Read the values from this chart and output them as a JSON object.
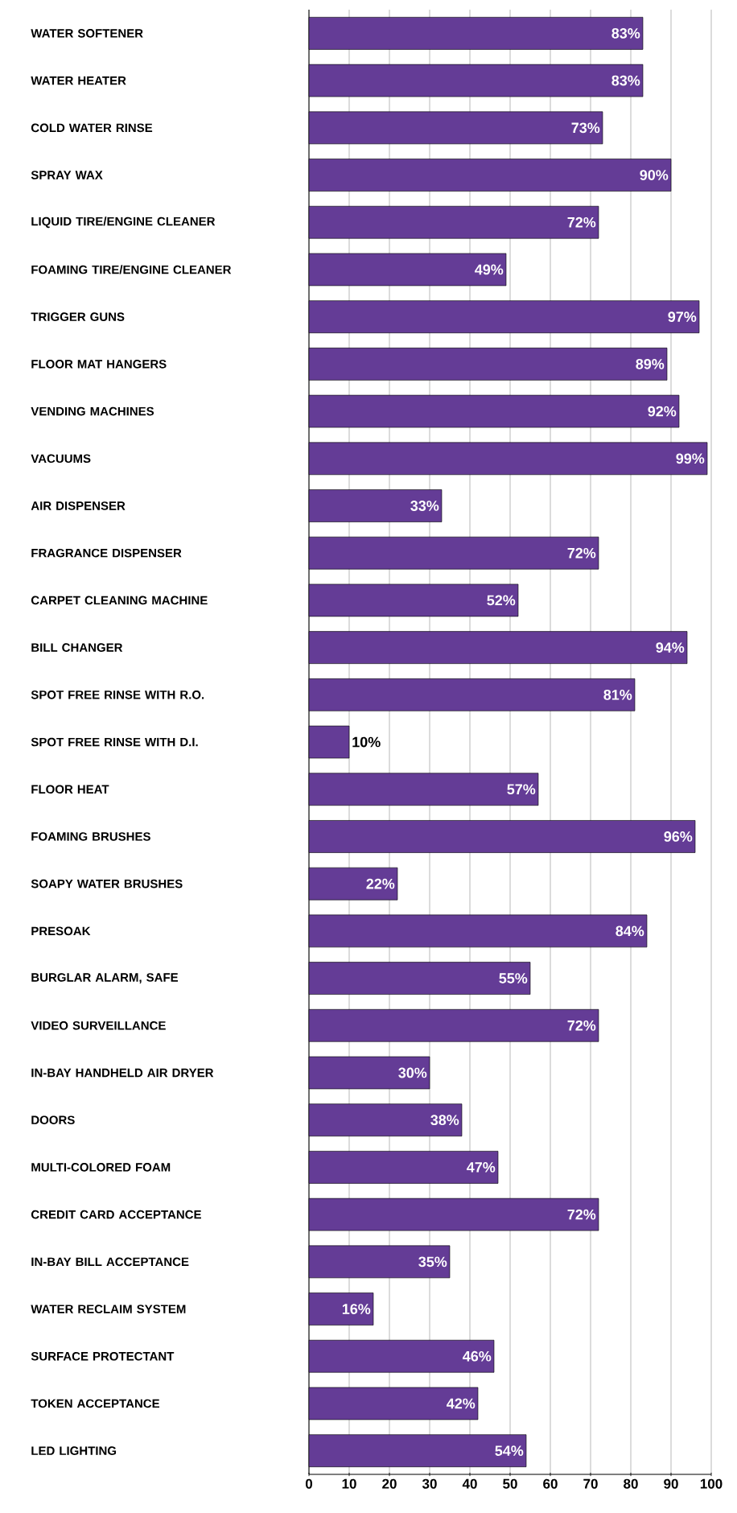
{
  "chart_data": {
    "type": "bar",
    "orientation": "horizontal",
    "color": "#643c96",
    "grid": "x",
    "categories": [
      "WATER SOFTENER",
      "WATER HEATER",
      "COLD WATER RINSE",
      "SPRAY WAX",
      "LIQUID TIRE/ENGINE CLEANER",
      "FOAMING TIRE/ENGINE CLEANER",
      "TRIGGER GUNS",
      "FLOOR MAT HANGERS",
      "VENDING MACHINES",
      "VACUUMS",
      "AIR DISPENSER",
      "FRAGRANCE DISPENSER",
      "CARPET CLEANING MACHINE",
      "BILL CHANGER",
      "SPOT FREE RINSE WITH R.O.",
      "SPOT FREE RINSE WITH D.I.",
      "FLOOR HEAT",
      "FOAMING BRUSHES",
      "SOAPY WATER BRUSHES",
      "PRESOAK",
      "BURGLAR ALARM, SAFE",
      "VIDEO SURVEILLANCE",
      "IN-BAY HANDHELD AIR DRYER",
      "DOORS",
      "MULTI-COLORED FOAM",
      "CREDIT CARD ACCEPTANCE",
      "IN-BAY BILL ACCEPTANCE",
      "WATER RECLAIM SYSTEM",
      "SURFACE PROTECTANT",
      "TOKEN ACCEPTANCE",
      "LED LIGHTING"
    ],
    "values": [
      83,
      83,
      73,
      90,
      72,
      49,
      97,
      89,
      92,
      99,
      33,
      72,
      52,
      94,
      81,
      10,
      57,
      96,
      22,
      84,
      55,
      72,
      30,
      38,
      47,
      72,
      35,
      16,
      46,
      42,
      54
    ],
    "value_labels": [
      "83%",
      "83%",
      "73%",
      "90%",
      "72%",
      "49%",
      "97%",
      "89%",
      "92%",
      "99%",
      "33%",
      "72%",
      "52%",
      "94%",
      "81%",
      "10%",
      "57%",
      "96%",
      "22%",
      "84%",
      "55%",
      "72%",
      "30%",
      "38%",
      "47%",
      "72%",
      "35%",
      "16%",
      "46%",
      "42%",
      "54%"
    ],
    "xlim": [
      0,
      100
    ],
    "xticks": [
      0,
      10,
      20,
      30,
      40,
      50,
      60,
      70,
      80,
      90,
      100
    ]
  }
}
